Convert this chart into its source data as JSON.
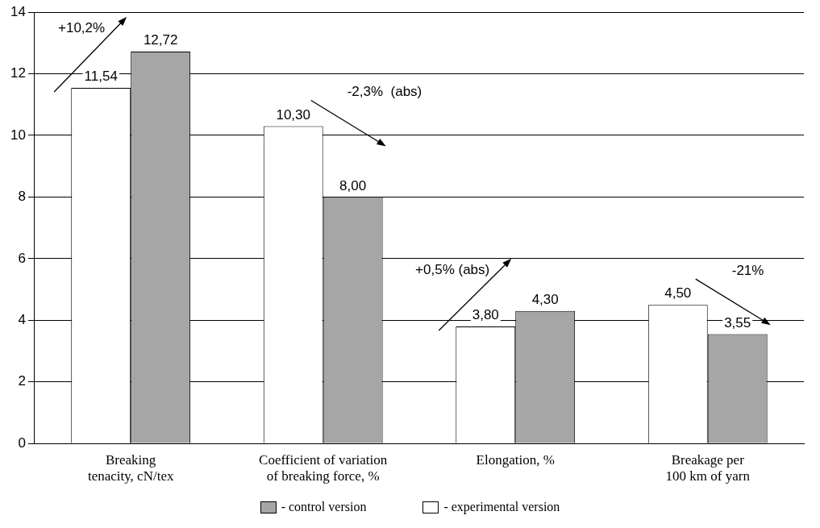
{
  "chart_data": {
    "type": "bar",
    "categories": [
      "Breaking tenacity, cN/tex",
      "Coefficient of variation of breaking force, %",
      "Elongation, %",
      "Breakage per 100 km of yarn"
    ],
    "series": [
      {
        "name": "- experimental version",
        "color": "#ffffff",
        "values": [
          11.54,
          10.3,
          3.8,
          4.5
        ],
        "value_labels": [
          "11,54",
          "10,30",
          "3,80",
          "4,50"
        ]
      },
      {
        "name": "- control version",
        "color": "#a6a6a6",
        "values": [
          12.72,
          8.0,
          4.3,
          3.55
        ],
        "value_labels": [
          "12,72",
          "8,00",
          "4,30",
          "3,55"
        ]
      }
    ],
    "ylim": [
      0,
      14
    ],
    "yticks": [
      0,
      2,
      4,
      6,
      8,
      10,
      12,
      14
    ],
    "grid": "y",
    "legend": "bottom",
    "annotations": [
      "+10,2%",
      "-2,3%  (abs)",
      "+0,5% (abs)",
      "-21%"
    ]
  }
}
